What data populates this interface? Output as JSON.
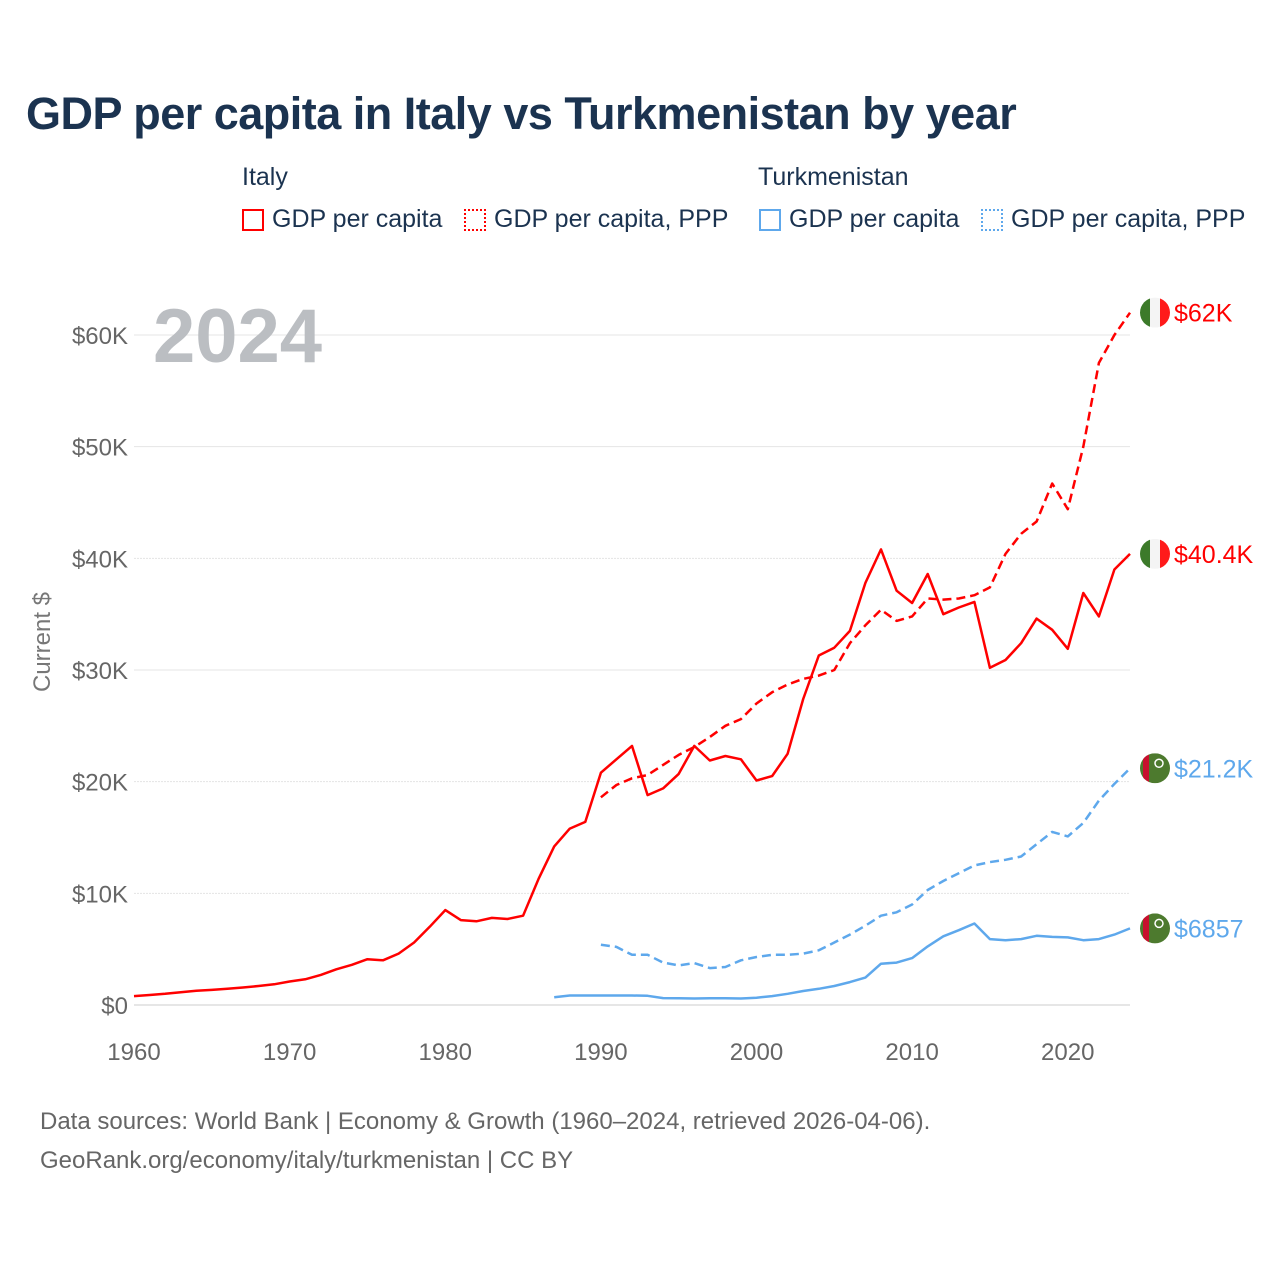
{
  "title": "GDP per capita in Italy vs Turkmenistan by year",
  "legend": {
    "groups": [
      {
        "name": "Italy",
        "items": [
          "GDP per capita",
          "GDP per capita, PPP"
        ]
      },
      {
        "name": "Turkmenistan",
        "items": [
          "GDP per capita",
          "GDP per capita, PPP"
        ]
      }
    ]
  },
  "year_overlay": "2024",
  "footer": {
    "line1": "Data sources: World Bank | Economy & Growth (1960–2024, retrieved 2026-04-06).",
    "line2": "GeoRank.org/economy/italy/turkmenistan | CC BY"
  },
  "chart_data": {
    "type": "line",
    "title": "GDP per capita in Italy vs Turkmenistan by year",
    "xlabel": "",
    "ylabel": "Current $",
    "xlim": [
      1960,
      2024
    ],
    "ylim": [
      0,
      62000
    ],
    "x_ticks": [
      "1960",
      "1970",
      "1980",
      "1990",
      "2000",
      "2010",
      "2020"
    ],
    "x_tick_values": [
      1960,
      1970,
      1980,
      1990,
      2000,
      2010,
      2020
    ],
    "y_ticks": [
      "$0",
      "$10K",
      "$20K",
      "$30K",
      "$40K",
      "$50K",
      "$60K"
    ],
    "y_tick_values": [
      0,
      10000,
      20000,
      30000,
      40000,
      50000,
      60000
    ],
    "grid": true,
    "legend_position": "top",
    "colors": {
      "italy": "#ff0000",
      "turkmenistan": "#5ea8ec"
    },
    "series": [
      {
        "name": "Italy GDP per capita",
        "country": "italy",
        "dashed": false,
        "start_year": 1960,
        "end_label": "$40.4K",
        "values": [
          800,
          900,
          1000,
          1150,
          1270,
          1350,
          1450,
          1570,
          1700,
          1850,
          2100,
          2300,
          2700,
          3200,
          3600,
          4100,
          4000,
          4600,
          5600,
          7000,
          8500,
          7600,
          7500,
          7800,
          7700,
          8000,
          11300,
          14200,
          15800,
          16400,
          20800,
          22000,
          23200,
          18800,
          19400,
          20700,
          23200,
          21900,
          22300,
          22000,
          20100,
          20500,
          22500,
          27400,
          31300,
          32000,
          33500,
          37800,
          40800,
          37100,
          36000,
          38600,
          35000,
          35600,
          36100,
          30200,
          30900,
          32400,
          34600,
          33600,
          31900,
          36900,
          34800,
          39000,
          40400
        ]
      },
      {
        "name": "Italy GDP per capita, PPP",
        "country": "italy",
        "dashed": true,
        "start_year": 1990,
        "end_label": "$62K",
        "values": [
          18600,
          19700,
          20300,
          20600,
          21500,
          22400,
          23100,
          24000,
          25000,
          25600,
          27000,
          28000,
          28700,
          29200,
          29500,
          30000,
          32400,
          34000,
          35400,
          34400,
          34800,
          36400,
          36300,
          36400,
          36700,
          37400,
          40400,
          42200,
          43300,
          46700,
          44400,
          50000,
          57500,
          60000,
          62000
        ]
      },
      {
        "name": "Turkmenistan GDP per capita",
        "country": "turkmenistan",
        "dashed": false,
        "start_year": 1987,
        "end_label": "$6857",
        "values": [
          700,
          850,
          850,
          850,
          850,
          850,
          820,
          620,
          600,
          580,
          600,
          600,
          580,
          650,
          800,
          1000,
          1250,
          1450,
          1700,
          2050,
          2450,
          3700,
          3800,
          4200,
          5250,
          6150,
          6700,
          7300,
          5900,
          5800,
          5900,
          6200,
          6100,
          6050,
          5800,
          5900,
          6300,
          6857
        ]
      },
      {
        "name": "Turkmenistan GDP per capita, PPP",
        "country": "turkmenistan",
        "dashed": true,
        "start_year": 1990,
        "end_label": "$21.2K",
        "values": [
          5400,
          5200,
          4500,
          4500,
          3800,
          3550,
          3750,
          3300,
          3400,
          4000,
          4300,
          4500,
          4500,
          4600,
          4900,
          5600,
          6300,
          7100,
          8000,
          8300,
          9000,
          10300,
          11100,
          11800,
          12500,
          12800,
          13000,
          13300,
          14400,
          15500,
          15100,
          16300,
          18300,
          19800,
          21200
        ]
      }
    ]
  }
}
